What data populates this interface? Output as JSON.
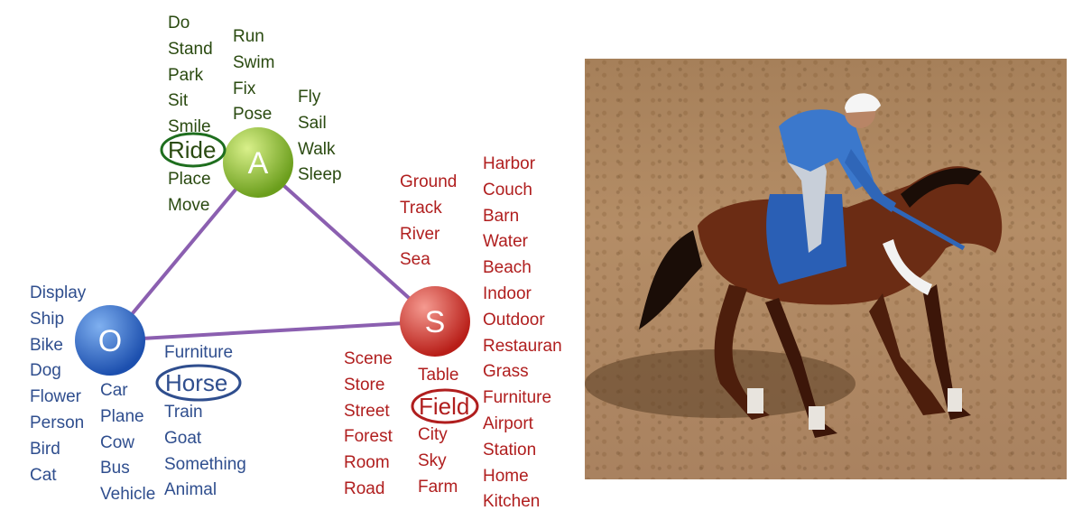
{
  "nodes": {
    "a": {
      "label": "A",
      "color": "#8fbf3a"
    },
    "o": {
      "label": "O",
      "color": "#2e66c4"
    },
    "s": {
      "label": "S",
      "color": "#d23a32"
    }
  },
  "actions": {
    "col1": [
      "Do",
      "Stand",
      "Park",
      "Sit",
      "Smile"
    ],
    "highlight": "Ride",
    "col1b": [
      "Place",
      "Move"
    ],
    "col2": [
      "Run",
      "Swim",
      "Fix",
      "Pose"
    ],
    "col3": [
      "Fly",
      "Sail",
      "Walk",
      "Sleep"
    ]
  },
  "objects": {
    "col1": [
      "Display",
      "Ship",
      "Bike",
      "Dog",
      "Flower",
      "Person",
      "Bird",
      "Cat"
    ],
    "col2": [
      "Car",
      "Plane",
      "Cow",
      "Bus",
      "Vehicle"
    ],
    "col3a": [
      "Furniture"
    ],
    "highlight": "Horse",
    "col3b": [
      "Train",
      "Goat",
      "Something",
      "Animal"
    ]
  },
  "scenes": {
    "col1": [
      "Ground",
      "Track",
      "River",
      "Sea"
    ],
    "col2": [
      "Harbor",
      "Couch",
      "Barn",
      "Water",
      "Beach",
      "Indoor",
      "Outdoor",
      "Restauran",
      "Grass",
      "Furniture",
      "Airport",
      "Station",
      "Home",
      "Kitchen"
    ],
    "col3": [
      "Scene",
      "Store",
      "Street",
      "Forest",
      "Room",
      "Road"
    ],
    "col4a": [
      "Table"
    ],
    "highlight": "Field",
    "col4b": [
      "City",
      "Sky",
      "Farm"
    ]
  },
  "colors": {
    "edge": "#8b5fb0",
    "actions_text": "#2a4a10",
    "actions_ring": "#1e6e1e",
    "objects_text": "#2f4e8e",
    "objects_ring": "#2f4e8e",
    "scenes_text": "#b01e1e",
    "scenes_ring": "#b01e1e"
  }
}
